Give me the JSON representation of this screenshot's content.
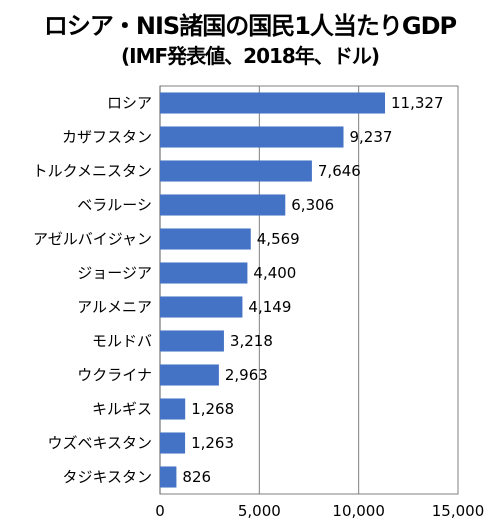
{
  "chart_data": {
    "type": "bar",
    "orientation": "horizontal",
    "title": "ロシア・NIS諸国の国民1人当たりGDP",
    "subtitle": "(IMF発表値、2018年、ドル)",
    "categories": [
      "ロシア",
      "カザフスタン",
      "トルクメニスタン",
      "ベラルーシ",
      "アゼルバイジャン",
      "ジョージア",
      "アルメニア",
      "モルドバ",
      "ウクライナ",
      "キルギス",
      "ウズベキスタン",
      "タジキスタン"
    ],
    "values": [
      11327,
      9237,
      7646,
      6306,
      4569,
      4400,
      4149,
      3218,
      2963,
      1268,
      1263,
      826
    ],
    "value_labels": [
      "11,327",
      "9,237",
      "7,646",
      "6,306",
      "4,569",
      "4,400",
      "4,149",
      "3,218",
      "2,963",
      "1,268",
      "1,263",
      "826"
    ],
    "xticks": [
      0,
      5000,
      10000,
      15000
    ],
    "xtick_labels": [
      "0",
      "5,000",
      "10,000",
      "15,000"
    ],
    "xlim": [
      0,
      15000
    ],
    "xlabel": "",
    "ylabel": "",
    "grid": "vertical",
    "bar_color": "#4472C4",
    "grid_color": "#7f7f7f"
  }
}
